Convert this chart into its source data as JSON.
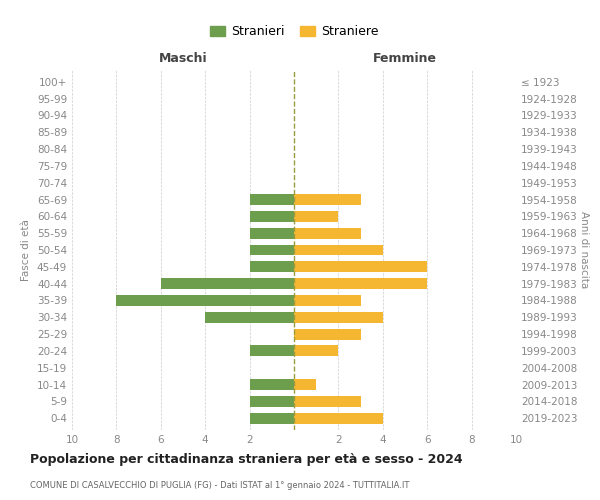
{
  "age_groups": [
    "100+",
    "95-99",
    "90-94",
    "85-89",
    "80-84",
    "75-79",
    "70-74",
    "65-69",
    "60-64",
    "55-59",
    "50-54",
    "45-49",
    "40-44",
    "35-39",
    "30-34",
    "25-29",
    "20-24",
    "15-19",
    "10-14",
    "5-9",
    "0-4"
  ],
  "birth_years": [
    "≤ 1923",
    "1924-1928",
    "1929-1933",
    "1934-1938",
    "1939-1943",
    "1944-1948",
    "1949-1953",
    "1954-1958",
    "1959-1963",
    "1964-1968",
    "1969-1973",
    "1974-1978",
    "1979-1983",
    "1984-1988",
    "1989-1993",
    "1994-1998",
    "1999-2003",
    "2004-2008",
    "2009-2013",
    "2014-2018",
    "2019-2023"
  ],
  "maschi": [
    0,
    0,
    0,
    0,
    0,
    0,
    0,
    2,
    2,
    2,
    2,
    2,
    6,
    8,
    4,
    0,
    2,
    0,
    2,
    2,
    2
  ],
  "femmine": [
    0,
    0,
    0,
    0,
    0,
    0,
    0,
    3,
    2,
    3,
    4,
    6,
    6,
    3,
    4,
    3,
    2,
    0,
    1,
    3,
    4
  ],
  "color_maschi": "#6d9e4e",
  "color_femmine": "#f5b731",
  "title": "Popolazione per cittadinanza straniera per età e sesso - 2024",
  "subtitle": "COMUNE DI CASALVECCHIO DI PUGLIA (FG) - Dati ISTAT al 1° gennaio 2024 - TUTTITALIA.IT",
  "xlabel_left": "Maschi",
  "xlabel_right": "Femmine",
  "ylabel_left": "Fasce di età",
  "ylabel_right": "Anni di nascita",
  "legend_maschi": "Stranieri",
  "legend_femmine": "Straniere",
  "grid_color": "#cccccc",
  "background_color": "#ffffff",
  "center_line_color": "#9b9b3e"
}
